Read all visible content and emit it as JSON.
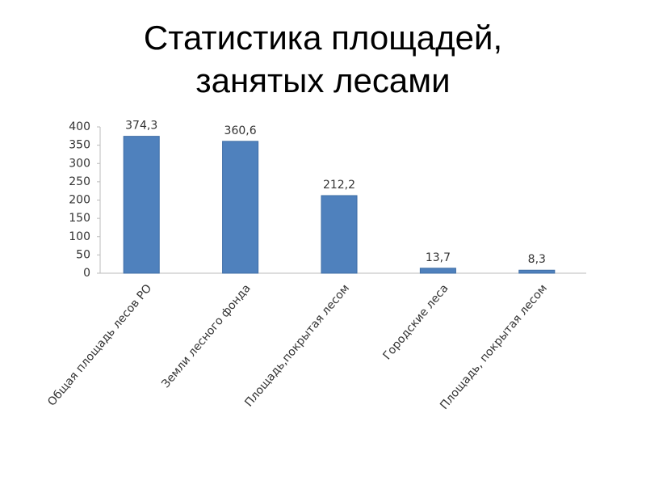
{
  "chart_data": {
    "type": "bar",
    "title": [
      "Статистика площадей,",
      "занятых лесами"
    ],
    "categories": [
      "Общая площадь лесов РО",
      "Земли лесного фонда",
      "Площадь,покрытая лесом",
      "Городские леса",
      "Площадь, покрытая лесом"
    ],
    "values": [
      374.3,
      360.6,
      212.2,
      13.7,
      8.3
    ],
    "value_labels": [
      "374,3",
      "360,6",
      "212,2",
      "13,7",
      "8,3"
    ],
    "color": "#4f81bd",
    "ylim": [
      0,
      400
    ],
    "yticks": [
      0,
      50,
      100,
      150,
      200,
      250,
      300,
      350,
      400
    ],
    "grid": false
  }
}
